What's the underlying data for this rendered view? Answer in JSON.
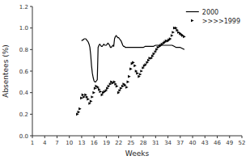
{
  "chart_data": {
    "type": "line",
    "xlabel": "Weeks",
    "ylabel": "Absentees (%)",
    "xlim": [
      1,
      52
    ],
    "ylim": [
      0,
      1.2
    ],
    "xticks": [
      1,
      4,
      7,
      10,
      13,
      16,
      19,
      22,
      25,
      28,
      31,
      34,
      37,
      40,
      43,
      46,
      49,
      52
    ],
    "yticks": [
      {
        "value": 0,
        "label": "0.0"
      },
      0.2,
      0.4,
      0.6,
      0.8,
      {
        "value": 1,
        "label": "1.0"
      },
      1.2
    ],
    "grid": false,
    "legend": "upper right",
    "series": [
      {
        "name": "2000",
        "type": "line",
        "color": "#000000",
        "line_style": "solid",
        "x": [
          13.0,
          13.2,
          13.4,
          13.6,
          13.8,
          14.0,
          14.2,
          14.4,
          14.6,
          14.8,
          15.0,
          15.2,
          15.4,
          15.6,
          15.8,
          16.0,
          16.2,
          16.4,
          16.6,
          16.8,
          17.0,
          17.2,
          17.4,
          17.6,
          17.8,
          18.0,
          18.2,
          18.4,
          18.6,
          18.8,
          19.0,
          19.2,
          19.4,
          19.6,
          19.8,
          20.0,
          20.2,
          20.4,
          20.6,
          20.8,
          21.0,
          21.2,
          21.4,
          21.6,
          21.8,
          22.0,
          22.2,
          22.4,
          22.6,
          22.8,
          23.0,
          23.2,
          23.4,
          23.6,
          23.8,
          24.0,
          24.5,
          25.0,
          25.5,
          26.0,
          26.5,
          27.0,
          27.5,
          28.0,
          28.5,
          29.0,
          29.5,
          30.0,
          30.5,
          31.0,
          31.5,
          32.0,
          32.5,
          33.0,
          33.5,
          34.0,
          34.5,
          35.0,
          35.5,
          36.0,
          36.5,
          37.0,
          37.5,
          38.0
        ],
        "values": [
          0.88,
          0.89,
          0.89,
          0.9,
          0.9,
          0.9,
          0.89,
          0.88,
          0.87,
          0.85,
          0.82,
          0.75,
          0.65,
          0.58,
          0.54,
          0.51,
          0.5,
          0.5,
          0.51,
          0.52,
          0.82,
          0.84,
          0.85,
          0.84,
          0.83,
          0.83,
          0.84,
          0.85,
          0.84,
          0.84,
          0.84,
          0.85,
          0.86,
          0.85,
          0.84,
          0.82,
          0.82,
          0.83,
          0.84,
          0.83,
          0.9,
          0.92,
          0.93,
          0.92,
          0.91,
          0.91,
          0.9,
          0.89,
          0.88,
          0.86,
          0.84,
          0.83,
          0.83,
          0.82,
          0.82,
          0.82,
          0.82,
          0.82,
          0.82,
          0.82,
          0.82,
          0.82,
          0.82,
          0.82,
          0.83,
          0.83,
          0.83,
          0.83,
          0.83,
          0.84,
          0.84,
          0.84,
          0.84,
          0.84,
          0.84,
          0.84,
          0.84,
          0.84,
          0.83,
          0.82,
          0.82,
          0.82,
          0.81,
          0.8
        ]
      },
      {
        "name": ">>>>1999",
        "type": "scatter",
        "color": "#000000",
        "marker": "triangle-right",
        "x": [
          12.0,
          12.3,
          12.6,
          13.0,
          13.3,
          13.6,
          14.0,
          14.3,
          14.6,
          15.0,
          15.3,
          15.6,
          16.0,
          16.3,
          16.6,
          17.0,
          17.3,
          17.6,
          18.0,
          18.3,
          18.6,
          19.0,
          19.3,
          19.6,
          20.0,
          20.3,
          20.6,
          21.0,
          21.3,
          21.6,
          22.0,
          22.3,
          22.6,
          23.0,
          23.3,
          23.6,
          24.0,
          24.3,
          24.6,
          25.0,
          25.3,
          25.6,
          26.0,
          26.3,
          26.6,
          27.0,
          27.3,
          27.6,
          28.0,
          28.3,
          28.6,
          29.0,
          29.3,
          29.6,
          30.0,
          30.3,
          30.6,
          31.0,
          31.3,
          31.6,
          32.0,
          32.3,
          32.6,
          33.0,
          33.3,
          33.6,
          34.0,
          34.3,
          34.6,
          35.0,
          35.3,
          35.6,
          36.0,
          36.3,
          36.6,
          37.0,
          37.3,
          37.6,
          38.0
        ],
        "values": [
          0.2,
          0.22,
          0.25,
          0.35,
          0.38,
          0.36,
          0.38,
          0.36,
          0.34,
          0.3,
          0.32,
          0.36,
          0.4,
          0.44,
          0.46,
          0.45,
          0.43,
          0.41,
          0.38,
          0.4,
          0.41,
          0.42,
          0.44,
          0.46,
          0.48,
          0.5,
          0.49,
          0.5,
          0.48,
          0.46,
          0.4,
          0.42,
          0.44,
          0.46,
          0.48,
          0.47,
          0.45,
          0.5,
          0.55,
          0.62,
          0.67,
          0.68,
          0.65,
          0.6,
          0.58,
          0.55,
          0.57,
          0.6,
          0.63,
          0.65,
          0.66,
          0.68,
          0.7,
          0.72,
          0.72,
          0.74,
          0.76,
          0.78,
          0.8,
          0.82,
          0.83,
          0.84,
          0.85,
          0.86,
          0.87,
          0.88,
          0.88,
          0.89,
          0.9,
          0.93,
          0.96,
          1.0,
          1.0,
          0.98,
          0.96,
          0.95,
          0.94,
          0.93,
          0.92
        ]
      }
    ]
  }
}
